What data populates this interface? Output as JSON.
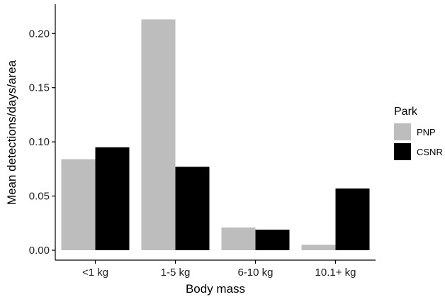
{
  "chart_data": {
    "type": "bar",
    "xlabel": "Body mass",
    "ylabel": "Mean detections/days/area",
    "categories": [
      "<1 kg",
      "1-5 kg",
      "6-10 kg",
      "10.1+ kg"
    ],
    "series": [
      {
        "name": "PNP",
        "color": "#bdbdbd",
        "values": [
          0.084,
          0.213,
          0.021,
          0.005
        ]
      },
      {
        "name": "CSNR",
        "color": "#000000",
        "values": [
          0.095,
          0.077,
          0.019,
          0.057
        ]
      }
    ],
    "ylim": [
      0,
      0.227
    ],
    "yticks": [
      0.0,
      0.05,
      0.1,
      0.15,
      0.2
    ],
    "ytick_labels": [
      "0.00",
      "0.05",
      "0.10",
      "0.15",
      "0.20"
    ],
    "legend": {
      "title": "Park",
      "position": "right"
    },
    "grid": false
  }
}
